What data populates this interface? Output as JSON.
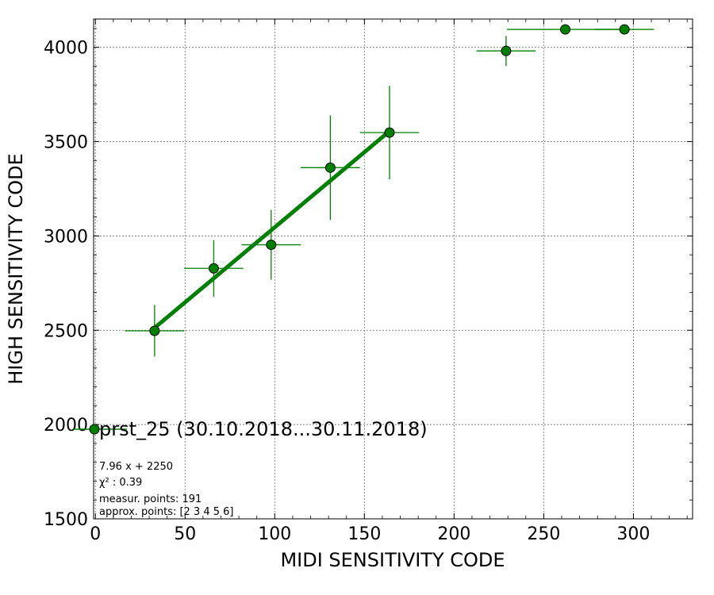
{
  "chart_data": {
    "type": "scatter",
    "xlabel": "MIDI SENSITIVITY CODE",
    "ylabel": "HIGH SENSITIVITY CODE",
    "xlim": [
      -1,
      333
    ],
    "ylim": [
      1500,
      4150
    ],
    "x_ticks": [
      "0",
      "50",
      "100",
      "150",
      "200",
      "250",
      "300"
    ],
    "y_ticks": [
      "1500",
      "2000",
      "2500",
      "3000",
      "3500",
      "4000"
    ],
    "grid": true,
    "colors": {
      "marker": "#008000",
      "fit_line": "#008000"
    },
    "series": [
      {
        "name": "prst_25 (30.10.2018...30.11.2018)",
        "points": [
          {
            "x": 33,
            "y": 2497,
            "xerr": 16.5,
            "yerr": 137
          },
          {
            "x": 66,
            "y": 2828,
            "xerr": 16.5,
            "yerr": 150
          },
          {
            "x": 98,
            "y": 2953,
            "xerr": 16.5,
            "yerr": 185
          },
          {
            "x": 131,
            "y": 3362,
            "xerr": 16.5,
            "yerr": 277
          },
          {
            "x": 164,
            "y": 3548,
            "xerr": 16.5,
            "yerr": 248
          },
          {
            "x": 229,
            "y": 3981,
            "xerr": 16.5,
            "yerr": 80
          },
          {
            "x": 262,
            "y": 4095,
            "xerr": 32.5,
            "yerr": 0
          },
          {
            "x": 295,
            "y": 4095,
            "xerr": 16.5,
            "yerr": 0
          }
        ]
      }
    ],
    "fit": {
      "slope": 7.96,
      "intercept": 2250,
      "x_range": [
        33,
        164
      ]
    },
    "annotations": [
      "7.96 x + 2250",
      "χ² : 0.39",
      "measur. points: 191",
      "approx. points: [2 3 4 5 6]"
    ],
    "legend": {
      "placement": "left",
      "label": "prst_25 (30.10.2018...30.11.2018)"
    }
  }
}
